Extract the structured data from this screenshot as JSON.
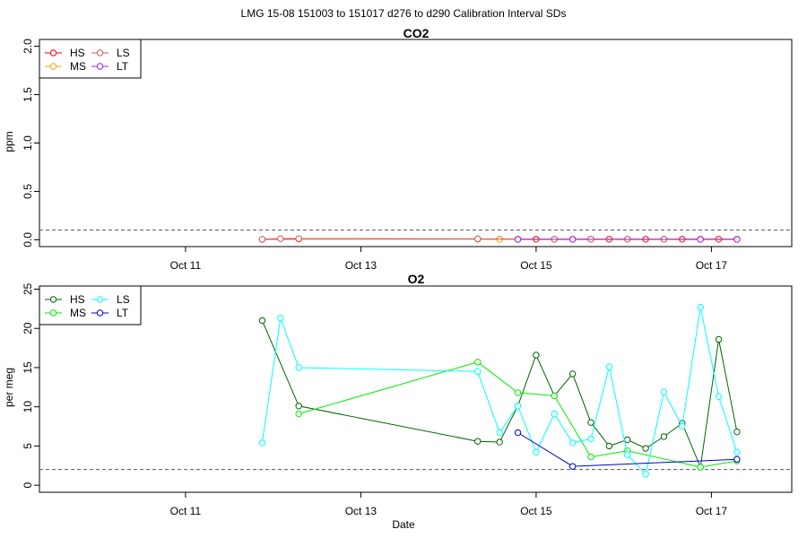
{
  "page_title": "LMG   15-08    151003 to 151017    d276 to d290   Calibration Interval SDs",
  "xlabel": "Date",
  "colors": {
    "HS_co2": "#ff0000",
    "MS_co2": "#ffa500",
    "LS_co2": "#cd5c5c",
    "LT_co2": "#a020f0",
    "HS_o2": "#006400",
    "MS_o2": "#00ee00",
    "LS_o2": "#00ffff",
    "LT_o2": "#0000cd",
    "reference_line": "#555555"
  },
  "chart_data": [
    {
      "type": "line",
      "title": "CO2",
      "ylabel": "ppm",
      "xlabel": "",
      "x_axis": "date",
      "xlim": [
        "2015-10-09T08:00",
        "2015-10-17T22:00"
      ],
      "x_ticks": [
        {
          "x": "2015-10-11",
          "label": "Oct 11"
        },
        {
          "x": "2015-10-13",
          "label": "Oct 13"
        },
        {
          "x": "2015-10-15",
          "label": "Oct 15"
        },
        {
          "x": "2015-10-17",
          "label": "Oct 17"
        }
      ],
      "ylim": [
        -0.07,
        2.07
      ],
      "y_ticks": [
        "0.0",
        "0.5",
        "1.0",
        "1.5",
        "2.0"
      ],
      "y_tick_values": [
        0,
        0.5,
        1.0,
        1.5,
        2.0
      ],
      "reference_line": 0.1,
      "legend_position": "top-left",
      "legend": [
        "HS",
        "MS",
        "LS",
        "LT"
      ],
      "series": [
        {
          "name": "HS",
          "color": "#ff0000",
          "points": [
            [
              "2015-10-11T21:00",
              0.005
            ],
            [
              "2015-10-12T07:00",
              0.008
            ],
            [
              "2015-10-14T08:00",
              0.008
            ],
            [
              "2015-10-14T14:00",
              0.007
            ],
            [
              "2015-10-14T19:00",
              0.006
            ],
            [
              "2015-10-15T00:00",
              0.006
            ],
            [
              "2015-10-15T05:00",
              0.006
            ],
            [
              "2015-10-15T10:00",
              0.006
            ],
            [
              "2015-10-15T15:00",
              0.006
            ],
            [
              "2015-10-15T20:00",
              0.006
            ],
            [
              "2015-10-16T01:00",
              0.006
            ],
            [
              "2015-10-16T06:00",
              0.006
            ],
            [
              "2015-10-16T11:00",
              0.006
            ],
            [
              "2015-10-16T16:00",
              0.006
            ],
            [
              "2015-10-16T21:00",
              0.006
            ],
            [
              "2015-10-17T02:00",
              0.006
            ],
            [
              "2015-10-17T07:00",
              0.006
            ]
          ]
        },
        {
          "name": "MS",
          "color": "#ffa500",
          "points": [
            [
              "2015-10-12T07:00",
              0.01
            ],
            [
              "2015-10-14T08:00",
              0.01
            ],
            [
              "2015-10-14T14:00",
              0.006
            ],
            [
              "2015-10-14T19:00",
              0.006
            ],
            [
              "2015-10-15T05:00",
              0.006
            ],
            [
              "2015-10-15T15:00",
              0.006
            ],
            [
              "2015-10-16T01:00",
              0.006
            ],
            [
              "2015-10-16T11:00",
              0.006
            ],
            [
              "2015-10-16T21:00",
              0.006
            ],
            [
              "2015-10-17T07:00",
              0.006
            ]
          ]
        },
        {
          "name": "LS",
          "color": "#cd5c5c",
          "points": [
            [
              "2015-10-11T21:00",
              0.006
            ],
            [
              "2015-10-12T02:00",
              0.012
            ],
            [
              "2015-10-12T07:00",
              0.012
            ],
            [
              "2015-10-14T08:00",
              0.01
            ],
            [
              "2015-10-14T19:00",
              0.006
            ],
            [
              "2015-10-15T05:00",
              0.006
            ],
            [
              "2015-10-15T15:00",
              0.006
            ],
            [
              "2015-10-16T01:00",
              0.006
            ],
            [
              "2015-10-16T11:00",
              0.006
            ],
            [
              "2015-10-16T21:00",
              0.006
            ],
            [
              "2015-10-17T07:00",
              0.006
            ]
          ]
        },
        {
          "name": "LT",
          "color": "#a020f0",
          "points": [
            [
              "2015-10-14T19:00",
              0.004
            ],
            [
              "2015-10-15T10:00",
              0.004
            ],
            [
              "2015-10-16T21:00",
              0.004
            ],
            [
              "2015-10-17T07:00",
              0.004
            ]
          ]
        }
      ]
    },
    {
      "type": "line",
      "title": "O2",
      "ylabel": "per meg",
      "xlabel": "Date",
      "x_axis": "date",
      "xlim": [
        "2015-10-09T08:00",
        "2015-10-17T22:00"
      ],
      "x_ticks": [
        {
          "x": "2015-10-11",
          "label": "Oct 11"
        },
        {
          "x": "2015-10-13",
          "label": "Oct 13"
        },
        {
          "x": "2015-10-15",
          "label": "Oct 15"
        },
        {
          "x": "2015-10-17",
          "label": "Oct 17"
        }
      ],
      "ylim": [
        -0.9,
        25.4
      ],
      "y_ticks": [
        "0",
        "5",
        "10",
        "15",
        "20",
        "25"
      ],
      "y_tick_values": [
        0,
        5,
        10,
        15,
        20,
        25
      ],
      "reference_line": 2,
      "legend_position": "top-left",
      "legend": [
        "HS",
        "MS",
        "LS",
        "LT"
      ],
      "series": [
        {
          "name": "HS",
          "color": "#006400",
          "points": [
            [
              "2015-10-11T21:00",
              21.0
            ],
            [
              "2015-10-12T07:00",
              10.1
            ],
            [
              "2015-10-14T08:00",
              5.6
            ],
            [
              "2015-10-14T14:00",
              5.5
            ],
            [
              "2015-10-14T19:00",
              10.1
            ],
            [
              "2015-10-15T00:00",
              16.6
            ],
            [
              "2015-10-15T05:00",
              11.4
            ],
            [
              "2015-10-15T10:00",
              14.2
            ],
            [
              "2015-10-15T15:00",
              8.0
            ],
            [
              "2015-10-15T20:00",
              5.0
            ],
            [
              "2015-10-16T01:00",
              5.8
            ],
            [
              "2015-10-16T06:00",
              4.7
            ],
            [
              "2015-10-16T11:00",
              6.2
            ],
            [
              "2015-10-16T16:00",
              7.9
            ],
            [
              "2015-10-16T21:00",
              2.3
            ],
            [
              "2015-10-17T02:00",
              18.6
            ],
            [
              "2015-10-17T07:00",
              6.8
            ]
          ]
        },
        {
          "name": "MS",
          "color": "#00ee00",
          "points": [
            [
              "2015-10-12T07:00",
              9.1
            ],
            [
              "2015-10-14T08:00",
              15.7
            ],
            [
              "2015-10-14T19:00",
              11.8
            ],
            [
              "2015-10-15T05:00",
              11.4
            ],
            [
              "2015-10-15T15:00",
              3.6
            ],
            [
              "2015-10-16T01:00",
              4.4
            ],
            [
              "2015-10-16T21:00",
              2.3
            ],
            [
              "2015-10-17T07:00",
              3.1
            ]
          ]
        },
        {
          "name": "LS",
          "color": "#00ffff",
          "points": [
            [
              "2015-10-11T21:00",
              5.4
            ],
            [
              "2015-10-12T02:00",
              21.3
            ],
            [
              "2015-10-12T07:00",
              15.0
            ],
            [
              "2015-10-14T08:00",
              14.5
            ],
            [
              "2015-10-14T14:00",
              6.7
            ],
            [
              "2015-10-14T19:00",
              10.1
            ],
            [
              "2015-10-15T00:00",
              4.2
            ],
            [
              "2015-10-15T05:00",
              9.1
            ],
            [
              "2015-10-15T10:00",
              5.4
            ],
            [
              "2015-10-15T15:00",
              5.9
            ],
            [
              "2015-10-15T20:00",
              15.1
            ],
            [
              "2015-10-16T01:00",
              3.9
            ],
            [
              "2015-10-16T06:00",
              1.4
            ],
            [
              "2015-10-16T11:00",
              11.9
            ],
            [
              "2015-10-16T16:00",
              7.5
            ],
            [
              "2015-10-16T21:00",
              22.7
            ],
            [
              "2015-10-17T02:00",
              11.3
            ],
            [
              "2015-10-17T07:00",
              4.2
            ]
          ]
        },
        {
          "name": "LT",
          "color": "#0000cd",
          "points": [
            [
              "2015-10-14T19:00",
              6.7
            ],
            [
              "2015-10-15T10:00",
              2.4
            ],
            [
              "2015-10-17T07:00",
              3.3
            ]
          ]
        }
      ]
    }
  ]
}
